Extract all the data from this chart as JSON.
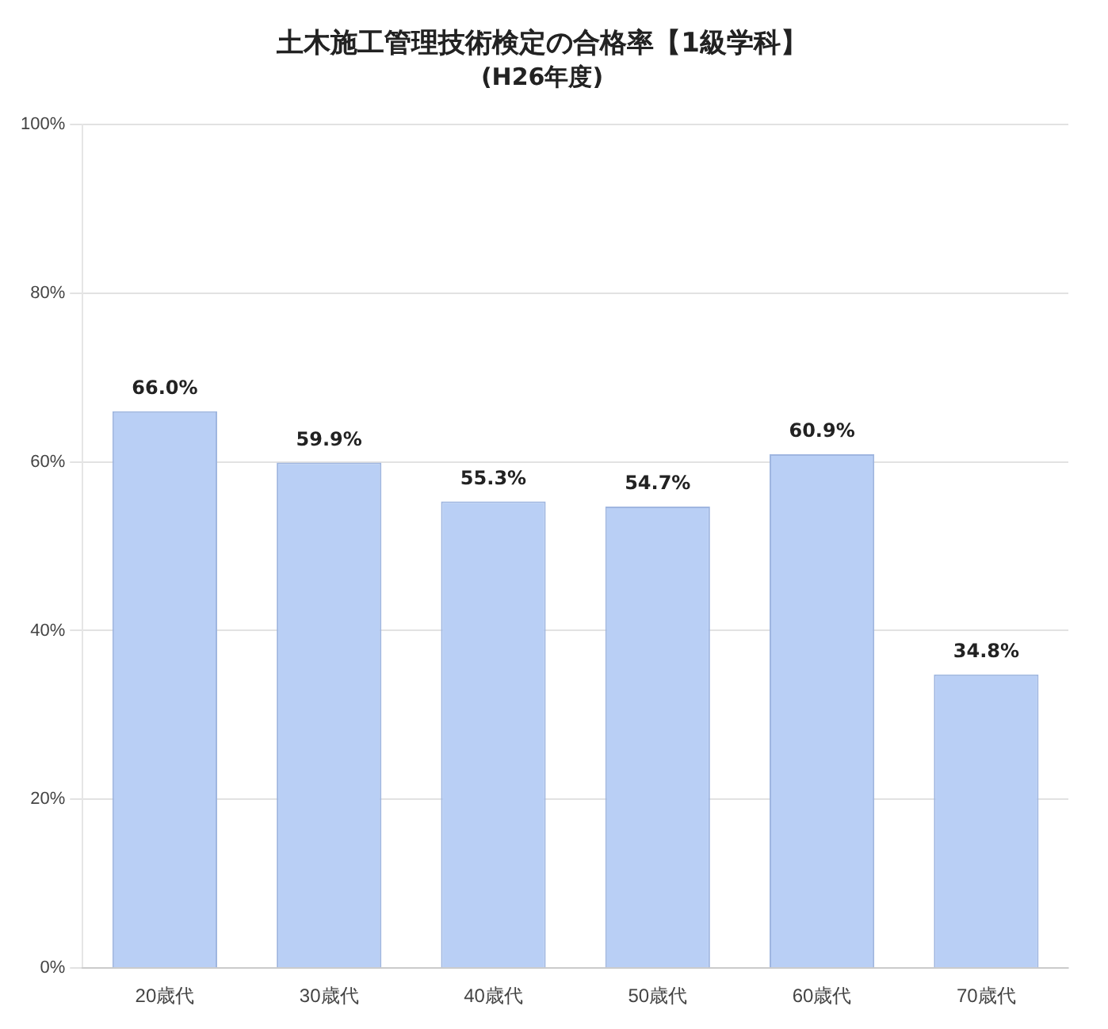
{
  "chart_data": {
    "type": "bar",
    "title": "土木施工管理技術検定の合格率【1級学科】",
    "subtitle": "(H26年度)",
    "categories": [
      "20歳代",
      "30歳代",
      "40歳代",
      "50歳代",
      "60歳代",
      "70歳代"
    ],
    "values": [
      66.0,
      59.9,
      55.3,
      54.7,
      60.9,
      34.8
    ],
    "value_labels": [
      "66.0%",
      "59.9%",
      "55.3%",
      "54.7%",
      "60.9%",
      "34.8%"
    ],
    "color": "#b9cff5",
    "ylim": [
      0,
      100
    ],
    "yticks": [
      {
        "value": 0,
        "label": "0%"
      },
      {
        "value": 20,
        "label": "20%"
      },
      {
        "value": 40,
        "label": "40%"
      },
      {
        "value": 60,
        "label": "60%"
      },
      {
        "value": 80,
        "label": "80%"
      },
      {
        "value": 100,
        "label": "100%"
      }
    ],
    "grid": "y",
    "legend": false
  }
}
